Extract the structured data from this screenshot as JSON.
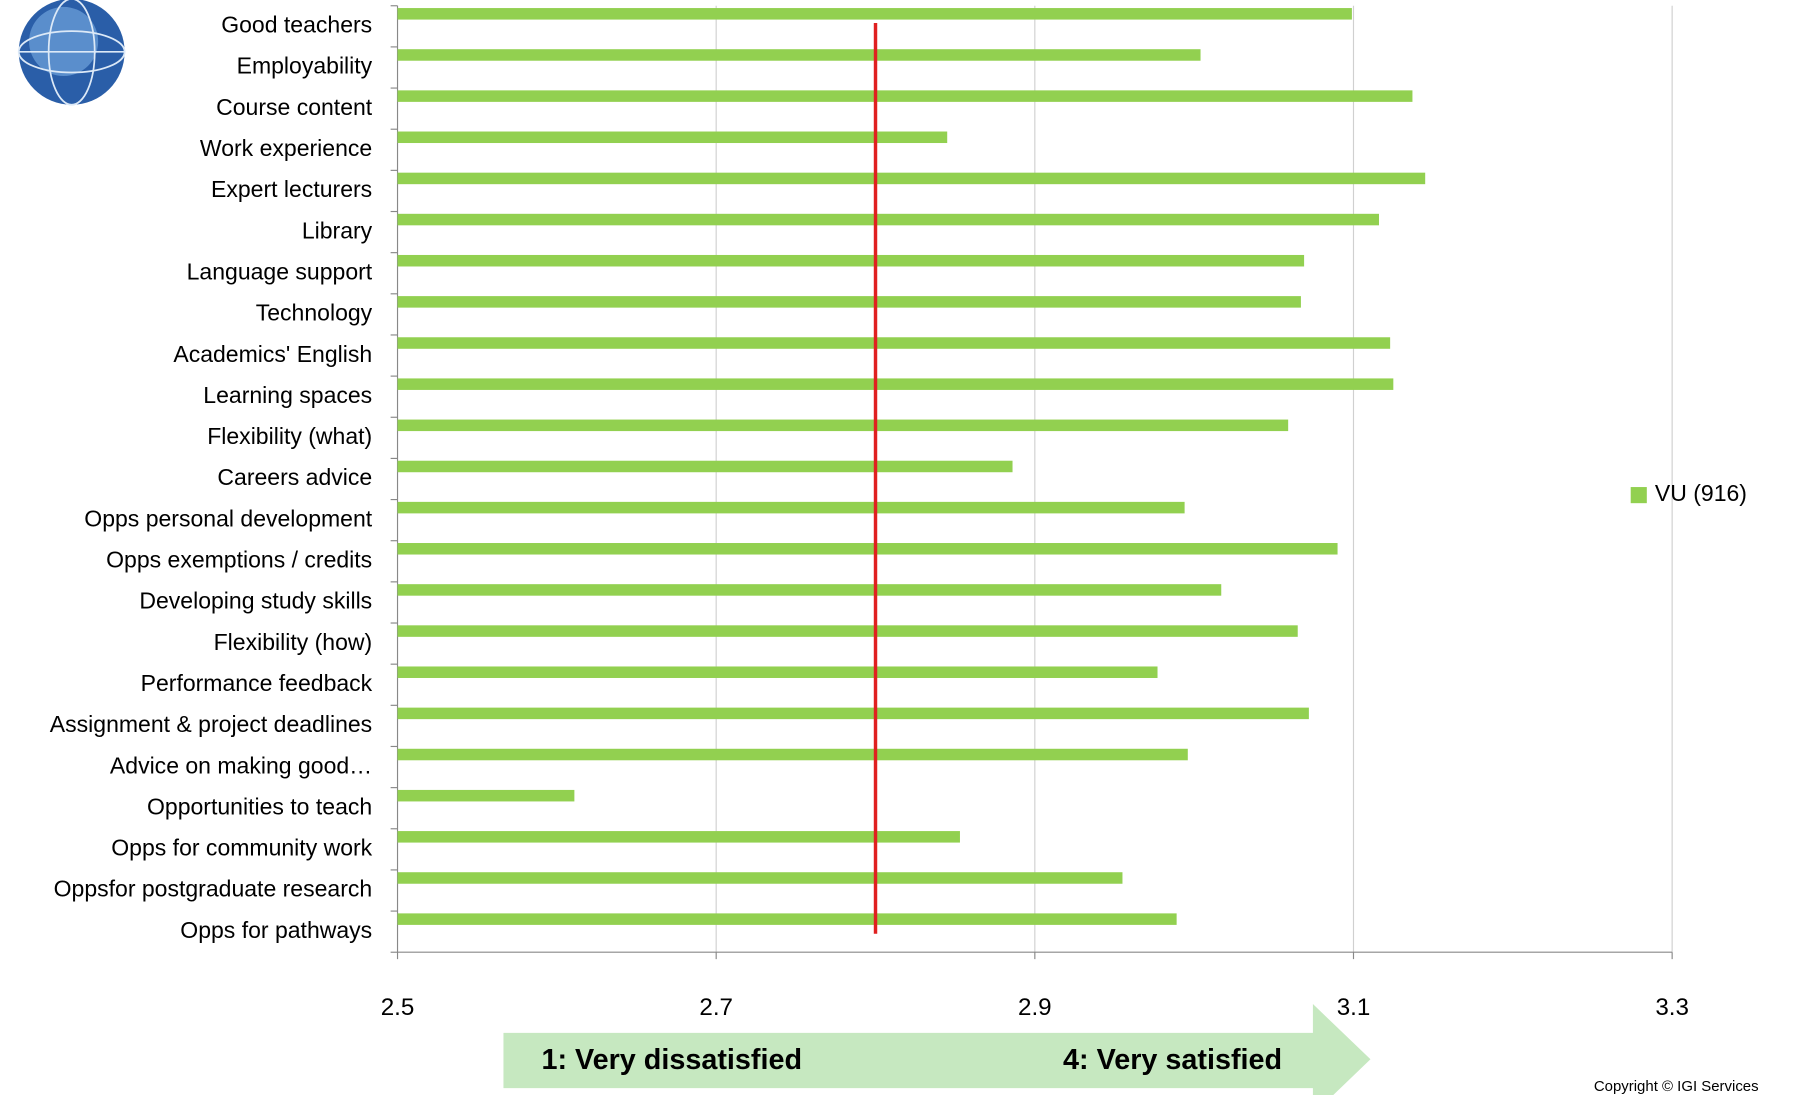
{
  "chart_data": {
    "type": "bar",
    "orientation": "horizontal",
    "categories": [
      "Good teachers",
      "Employability",
      "Course content",
      "Work experience",
      "Expert lecturers",
      "Library",
      "Language support",
      "Technology",
      "Academics' English",
      "Learning spaces",
      "Flexibility (what)",
      "Careers advice",
      "Opps personal development",
      "Opps exemptions / credits",
      "Developing study skills",
      "Flexibility (how)",
      "Performance feedback",
      "Assignment & project deadlines",
      "Advice on making good…",
      "Opportunities to teach",
      "Opps for community work",
      "Oppsfor postgraduate research",
      "Opps for pathways"
    ],
    "series": [
      {
        "name": "VU (916)",
        "color": "#92d050",
        "values": [
          3.099,
          3.004,
          3.137,
          2.845,
          3.145,
          3.116,
          3.069,
          3.067,
          3.123,
          3.125,
          3.059,
          2.886,
          2.994,
          3.09,
          3.017,
          3.065,
          2.977,
          3.072,
          2.996,
          2.611,
          2.853,
          2.955,
          2.989
        ]
      }
    ],
    "xlim": [
      2.5,
      3.3
    ],
    "xticks": [
      2.5,
      2.7,
      2.9,
      3.1,
      3.3
    ],
    "grid": true,
    "reference_line": 2.8,
    "reference_color": "#e02020",
    "legend": "right",
    "scale_low": "1: Very dissatisfied",
    "scale_high": "4: Very satisfied",
    "copyright": "Copyright © IGI Services"
  }
}
